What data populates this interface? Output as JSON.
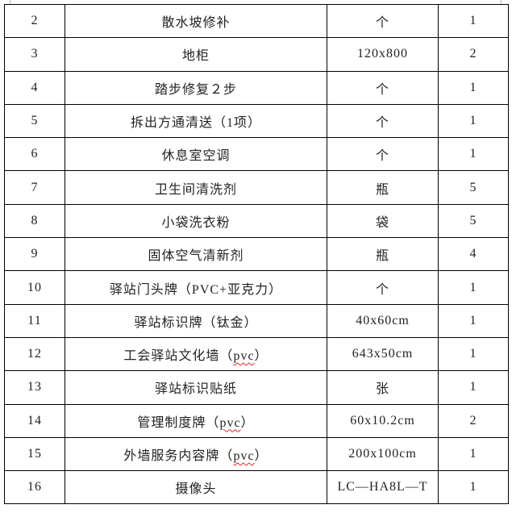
{
  "table": {
    "rows": [
      {
        "no": "2",
        "name": "散水坡修补",
        "name_pre": "",
        "name_spell": "",
        "name_post": "",
        "spec": "个",
        "qty": "1"
      },
      {
        "no": "3",
        "name": "地柜",
        "spec": "120x800",
        "qty": "2"
      },
      {
        "no": "4",
        "name": "踏步修复２步",
        "spec": "个",
        "qty": "1"
      },
      {
        "no": "5",
        "name": "拆出方通清送（1项）",
        "spec": "个",
        "qty": "1"
      },
      {
        "no": "6",
        "name": "休息室空调",
        "spec": "个",
        "qty": "1"
      },
      {
        "no": "7",
        "name": "卫生间清洗剂",
        "spec": "瓶",
        "qty": "5"
      },
      {
        "no": "8",
        "name": "小袋洗衣粉",
        "spec": "袋",
        "qty": "5"
      },
      {
        "no": "9",
        "name": "固体空气清新剂",
        "spec": "瓶",
        "qty": "4"
      },
      {
        "no": "10",
        "name": "驿站门头牌（PVC+亚克力）",
        "spec": "个",
        "qty": "1"
      },
      {
        "no": "11",
        "name": "驿站标识牌（钛金）",
        "spec": "40x60cm",
        "qty": "1"
      },
      {
        "no": "12",
        "name": "工会驿站文化墙（",
        "name_spell": "pvc",
        "name_post": "）",
        "spec": "643x50cm",
        "qty": "1"
      },
      {
        "no": "13",
        "name": "驿站标识贴纸",
        "spec": "张",
        "qty": "1"
      },
      {
        "no": "14",
        "name": "管理制度牌（",
        "name_spell": "pvc",
        "name_post": "）",
        "spec": "60x10.2cm",
        "qty": "2"
      },
      {
        "no": "15",
        "name": "外墙服务内容牌（",
        "name_spell": "pvc",
        "name_post": "）",
        "spec": "200x100cm",
        "qty": "1"
      },
      {
        "no": "16",
        "name": "摄像头",
        "spec": "LC—HA8L—T",
        "qty": "1"
      }
    ],
    "spellcheck_color": "#e02020"
  }
}
